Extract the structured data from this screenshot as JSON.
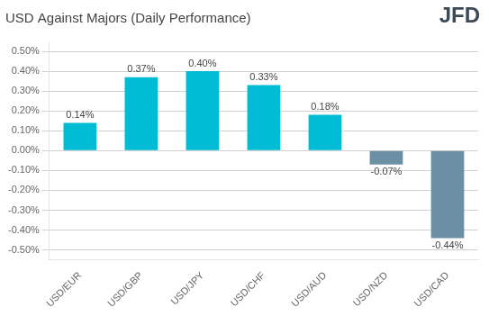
{
  "chart_data": {
    "type": "bar",
    "title": "USD Against Majors (Daily Performance)",
    "categories": [
      "USD/EUR",
      "USD/GBP",
      "USD/JPY",
      "USD/CHF",
      "USD/AUD",
      "USD/NZD",
      "USD/CAD"
    ],
    "values": [
      0.14,
      0.37,
      0.4,
      0.33,
      0.18,
      -0.07,
      -0.44
    ],
    "value_labels": [
      "0.14%",
      "0.37%",
      "0.40%",
      "0.33%",
      "0.18%",
      "-0.07%",
      "-0.44%"
    ],
    "data_labels": true,
    "colors": [
      "#00BCD4",
      "#00BCD4",
      "#00BCD4",
      "#00BCD4",
      "#00BCD4",
      "#6B8FA3",
      "#6B8FA3"
    ],
    "ylim": [
      -0.55,
      0.55
    ],
    "yticks": [
      {
        "value": -0.5,
        "label": "-0.50%"
      },
      {
        "value": -0.4,
        "label": "-0.40%"
      },
      {
        "value": -0.3,
        "label": "-0.30%"
      },
      {
        "value": -0.2,
        "label": "-0.20%"
      },
      {
        "value": -0.1,
        "label": "-0.10%"
      },
      {
        "value": 0.0,
        "label": "0.00%"
      },
      {
        "value": 0.1,
        "label": "0.10%"
      },
      {
        "value": 0.2,
        "label": "0.20%"
      },
      {
        "value": 0.3,
        "label": "0.30%"
      },
      {
        "value": 0.4,
        "label": "0.40%"
      },
      {
        "value": 0.5,
        "label": "0.50%"
      }
    ],
    "grid": true,
    "annotations": [
      {
        "text": "JFD",
        "color": "#3d4a57"
      }
    ]
  }
}
